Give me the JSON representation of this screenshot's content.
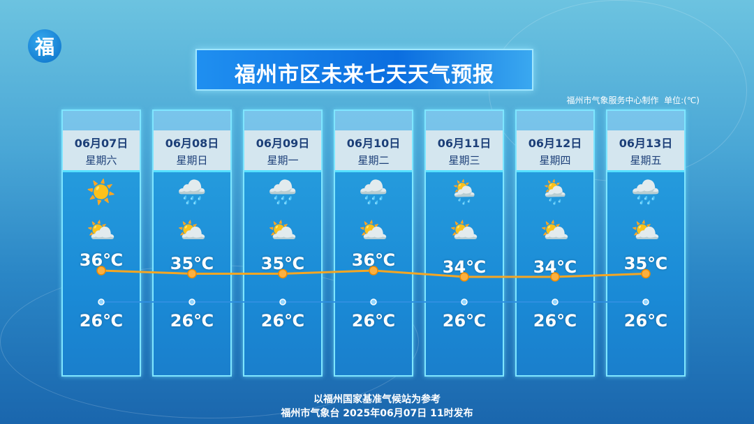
{
  "header": {
    "title": "福州市区未来七天天气预报",
    "credit": "福州市气象服务中心制作",
    "unit": "单位:(℃)",
    "logo_text": "福"
  },
  "days": [
    {
      "date": "06月07日",
      "weekday": "星期六",
      "day_icon": "sunny-icon",
      "night_icon": "partly-cloudy-icon",
      "high": "36℃",
      "low": "26℃"
    },
    {
      "date": "06月08日",
      "weekday": "星期日",
      "day_icon": "cloudy-rain-icon",
      "night_icon": "partly-cloudy-icon",
      "high": "35℃",
      "low": "26℃"
    },
    {
      "date": "06月09日",
      "weekday": "星期一",
      "day_icon": "cloudy-rain-icon",
      "night_icon": "partly-cloudy-icon",
      "high": "35℃",
      "low": "26℃"
    },
    {
      "date": "06月10日",
      "weekday": "星期二",
      "day_icon": "cloudy-rain-icon",
      "night_icon": "partly-cloudy-icon",
      "high": "36℃",
      "low": "26℃"
    },
    {
      "date": "06月11日",
      "weekday": "星期三",
      "day_icon": "cloudy-light-rain-icon",
      "night_icon": "partly-cloudy-icon",
      "high": "34℃",
      "low": "26℃"
    },
    {
      "date": "06月12日",
      "weekday": "星期四",
      "day_icon": "cloudy-light-rain-icon",
      "night_icon": "partly-cloudy-icon",
      "high": "34℃",
      "low": "26℃"
    },
    {
      "date": "06月13日",
      "weekday": "星期五",
      "day_icon": "cloudy-rain-icon",
      "night_icon": "partly-cloudy-icon",
      "high": "35℃",
      "low": "26℃"
    }
  ],
  "chart_data": {
    "type": "line",
    "categories": [
      "06月07日",
      "06月08日",
      "06月09日",
      "06月10日",
      "06月11日",
      "06月12日",
      "06月13日"
    ],
    "series": [
      {
        "values": [
          36,
          35,
          35,
          36,
          34,
          34,
          35
        ],
        "color": "#f5a623"
      },
      {
        "values": [
          26,
          26,
          26,
          26,
          26,
          26,
          26
        ],
        "color": "#2e8fe0"
      }
    ]
  },
  "footer": {
    "line1": "以福州国家基准气候站为参考",
    "line2": "福州市气象台 2025年06月07日 11时发布"
  }
}
